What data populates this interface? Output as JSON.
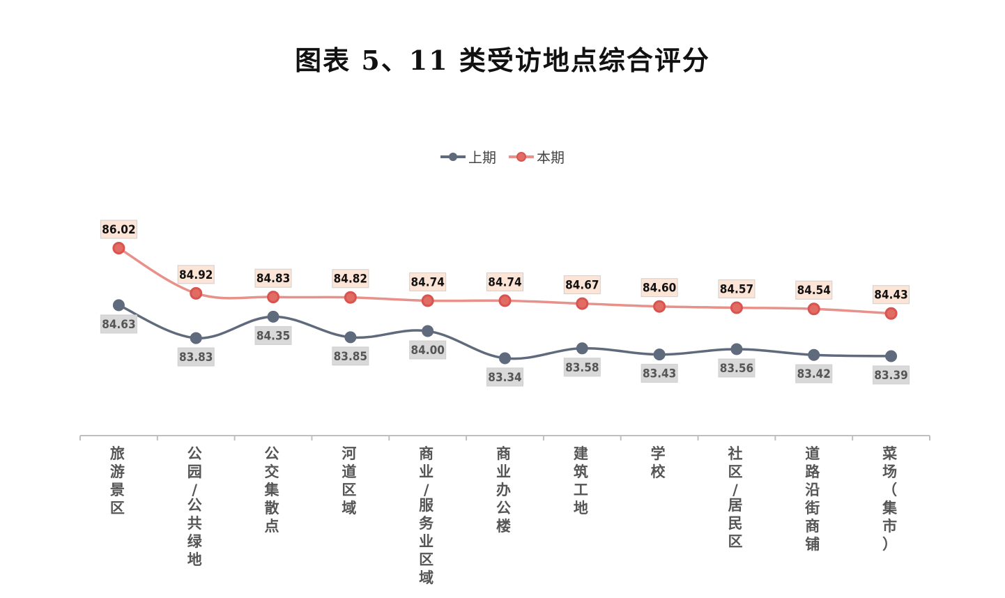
{
  "title": "图表 5、11 类受访地点综合评分",
  "colors": {
    "prev_line": "#5f6a7d",
    "prev_marker": "#5f6a7d",
    "prev_label_bg": "#d9d9d9",
    "curr_line": "#e8908a",
    "curr_marker_fill": "#e06c64",
    "curr_marker_stroke": "#d9534f",
    "curr_label_bg": "#fce4d6",
    "axis": "#bfbfbf"
  },
  "chart_data": {
    "type": "line",
    "title": "图表 5、11 类受访地点综合评分",
    "categories": [
      "旅游景区",
      "公园/公共绿地",
      "公交集散点",
      "河道区域",
      "商业/服务业区域",
      "商业办公楼",
      "建筑工地",
      "学校",
      "社区/居民区",
      "道路沿街商铺",
      "菜场（集市）"
    ],
    "series": [
      {
        "name": "上期",
        "values": [
          84.63,
          83.83,
          84.35,
          83.85,
          84.0,
          83.34,
          83.58,
          83.43,
          83.56,
          83.42,
          83.39
        ]
      },
      {
        "name": "本期",
        "values": [
          86.02,
          84.92,
          84.83,
          84.82,
          84.74,
          84.74,
          84.67,
          84.6,
          84.57,
          84.54,
          84.43
        ]
      }
    ],
    "legend_position": "top-center",
    "grid": false,
    "xlabel": "",
    "ylabel": ""
  }
}
